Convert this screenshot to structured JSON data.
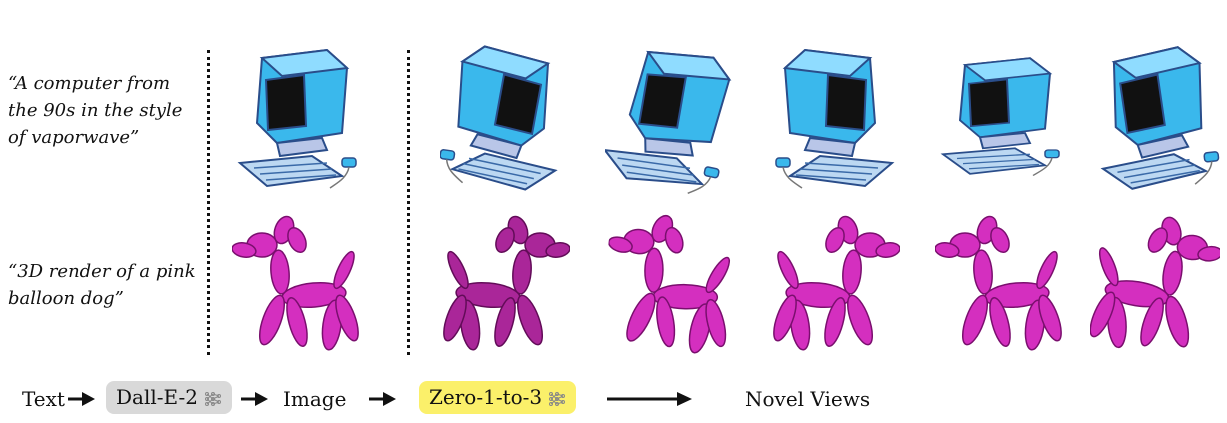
{
  "prompts": [
    "“A computer from\nthe 90s in the style\nof vaporwave”",
    "“3D render of a pink\nballoon dog”"
  ],
  "pipeline": {
    "text": "Text",
    "model1": "Dall-E-2",
    "image": "Image",
    "model2": "Zero-1-to-3",
    "output": "Novel Views"
  },
  "colors": {
    "computer_blue": "#3ab8ec",
    "balloon_pink": "#d42fbf",
    "dalle_chip": "#d9d9d9",
    "zero_chip": "#fbf06a"
  }
}
